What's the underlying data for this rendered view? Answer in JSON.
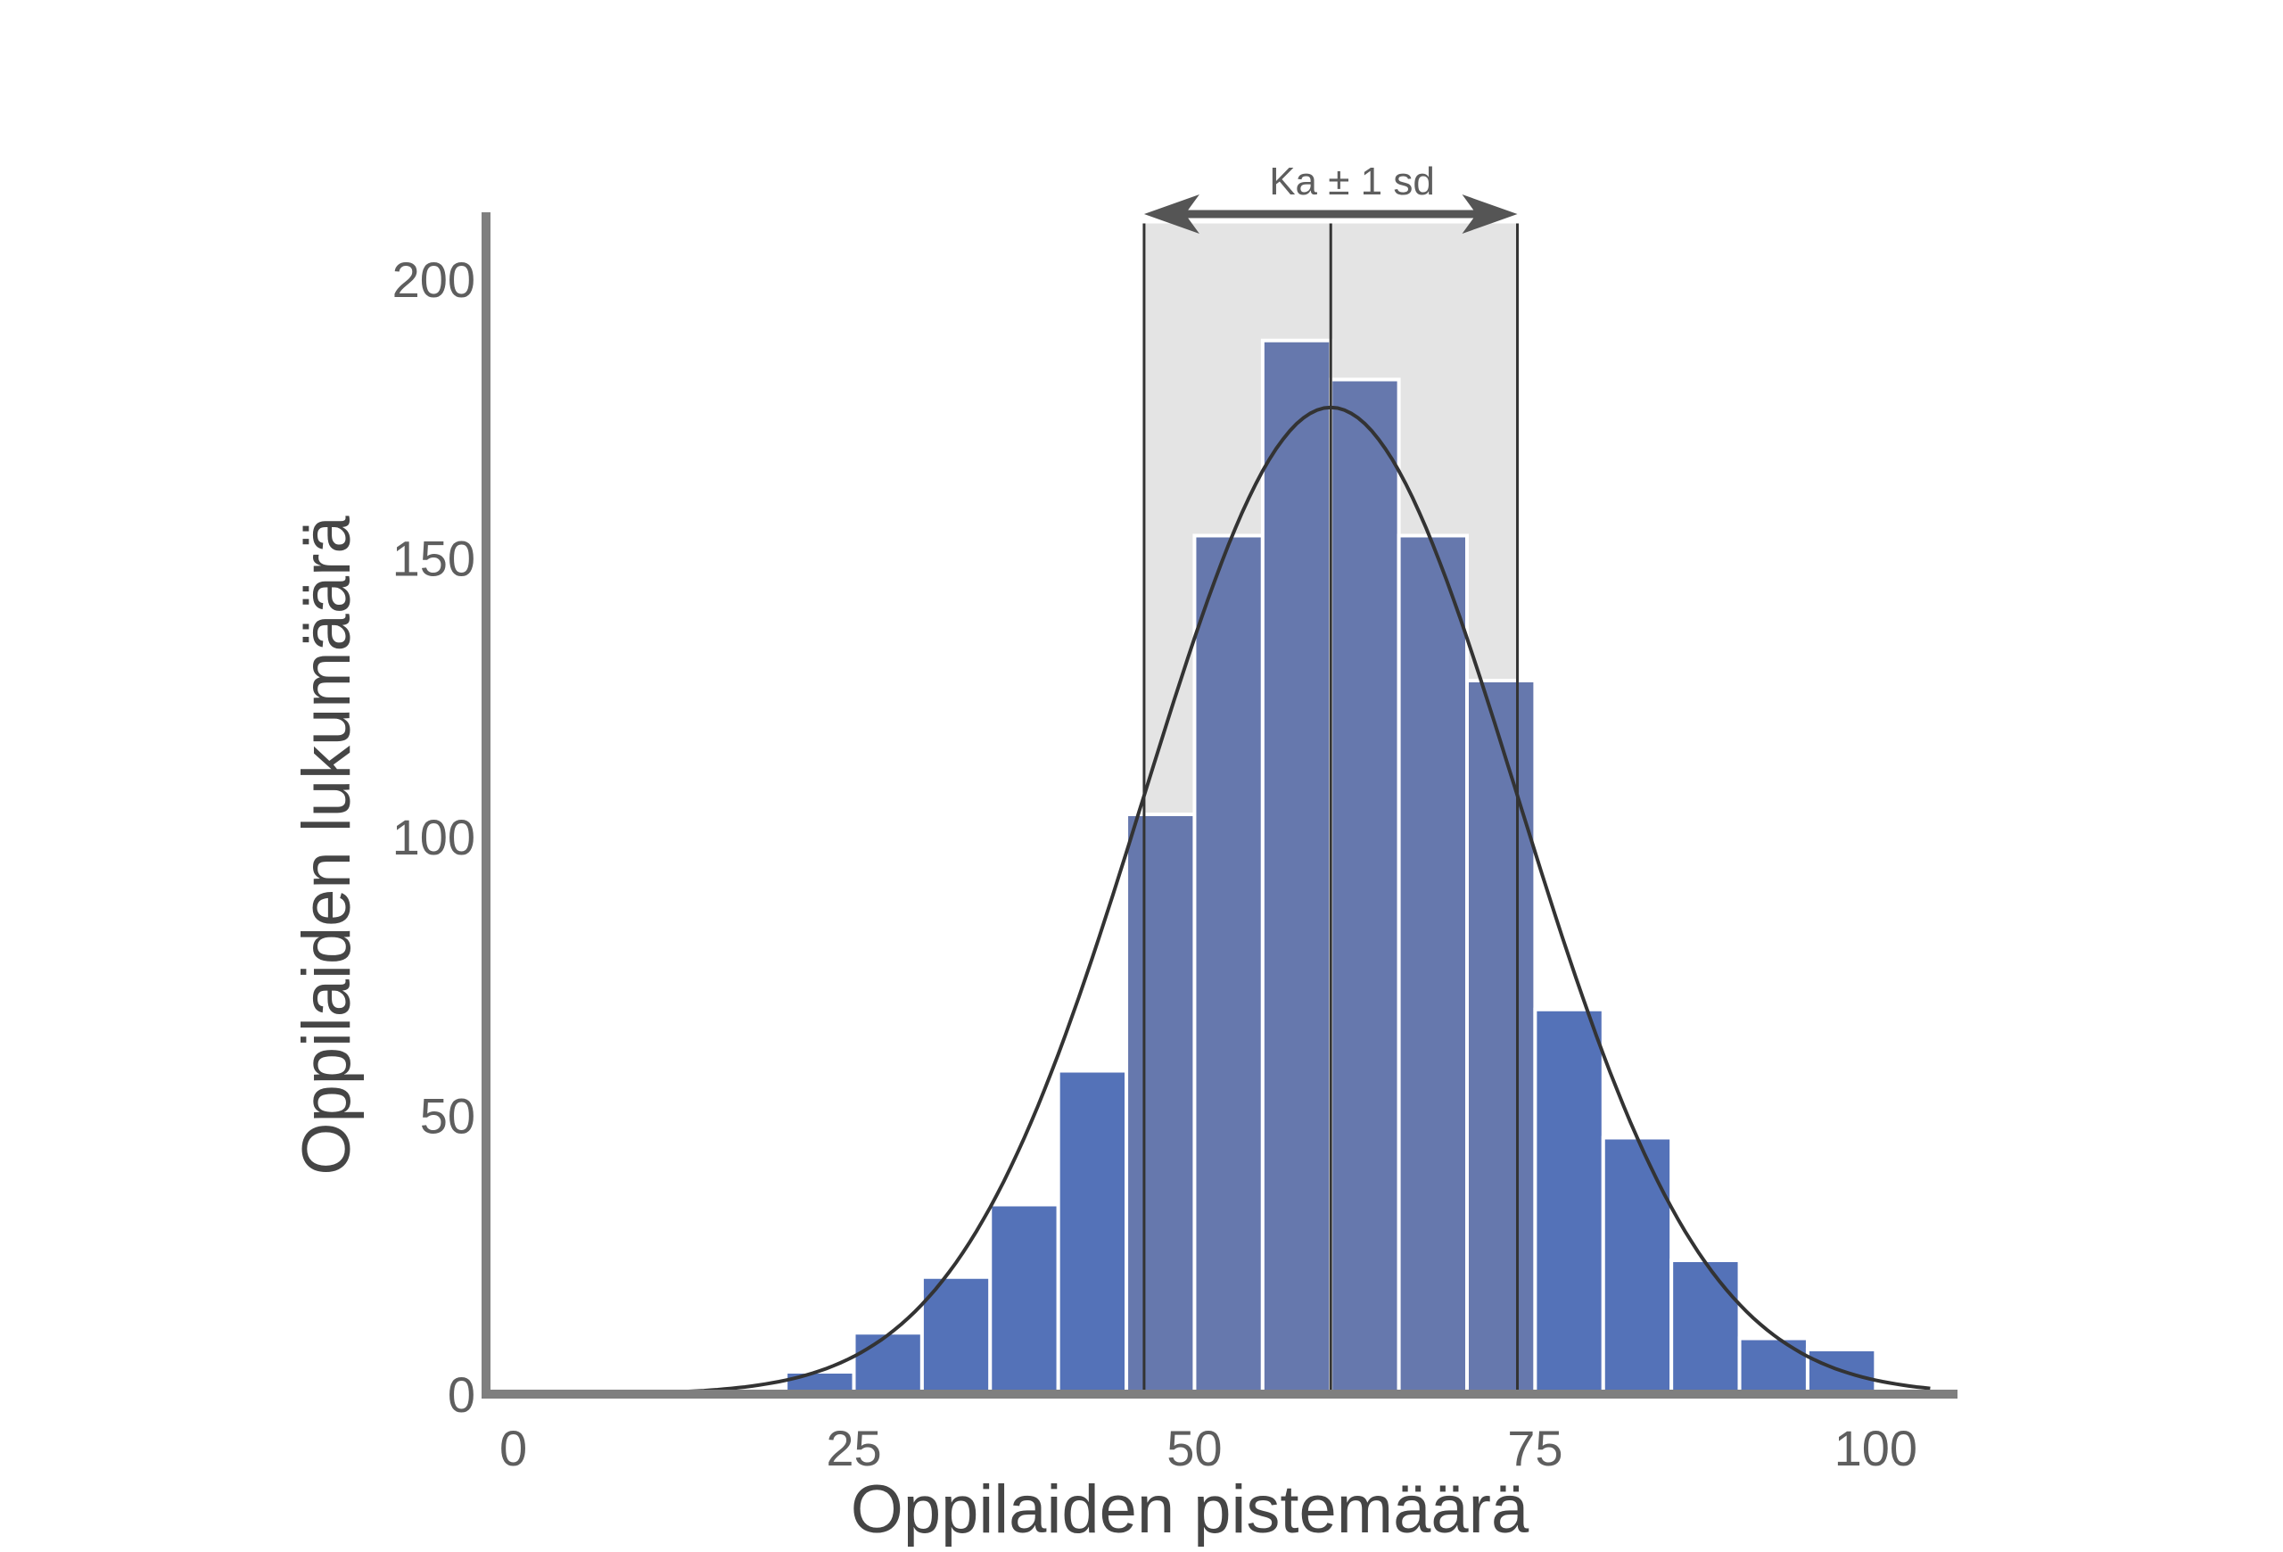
{
  "chart_data": {
    "type": "bar",
    "xlabel": "Oppilaiden pistemäärä",
    "ylabel": "Oppilaiden lukumäärä",
    "xlim": [
      -2,
      106
    ],
    "ylim": [
      0,
      211
    ],
    "x_ticks": [
      0,
      25,
      50,
      75,
      100
    ],
    "y_ticks": [
      0,
      50,
      100,
      150,
      200
    ],
    "bin_width": 5,
    "bins": [
      {
        "start": 10,
        "value": 1
      },
      {
        "start": 15,
        "value": 0.5
      },
      {
        "start": 20,
        "value": 4
      },
      {
        "start": 25,
        "value": 11
      },
      {
        "start": 30,
        "value": 21
      },
      {
        "start": 35,
        "value": 34
      },
      {
        "start": 40,
        "value": 58
      },
      {
        "start": 45,
        "value": 104
      },
      {
        "start": 50,
        "value": 154
      },
      {
        "start": 55,
        "value": 189
      },
      {
        "start": 60,
        "value": 182
      },
      {
        "start": 65,
        "value": 154
      },
      {
        "start": 70,
        "value": 128
      },
      {
        "start": 75,
        "value": 69
      },
      {
        "start": 80,
        "value": 46
      },
      {
        "start": 85,
        "value": 24
      },
      {
        "start": 90,
        "value": 10
      },
      {
        "start": 95,
        "value": 8
      }
    ],
    "normal_curve": {
      "mean": 60,
      "sd": 13.7,
      "peak": 177
    },
    "band": {
      "from": 46.3,
      "to": 73.7
    },
    "annotation": "Ka ± 1 sd",
    "grid": false
  },
  "colors": {
    "bar": "#5472b8",
    "bar_in_band": "#6678ad",
    "bar_edge": "#ffffff",
    "band": "#e4e4e4",
    "curve": "#333333",
    "axis": "#7f7f7f",
    "arrow": "#555555"
  }
}
